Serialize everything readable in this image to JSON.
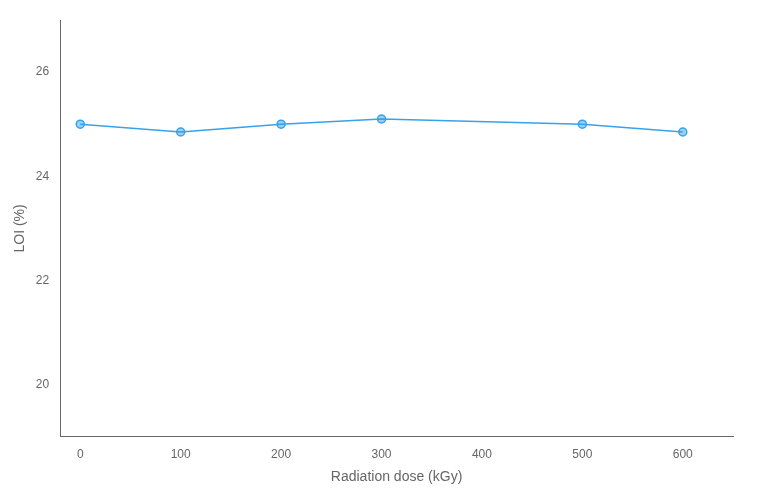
{
  "chart_data": {
    "type": "line",
    "x": [
      0,
      100,
      200,
      300,
      500,
      600
    ],
    "values": [
      25.0,
      24.85,
      25.0,
      25.1,
      25.0,
      24.85
    ],
    "xlabel": "Radiation dose (kGy)",
    "ylabel": "LOI (%)",
    "xlim": [
      -20,
      650
    ],
    "ylim": [
      19.0,
      27.0
    ],
    "xticks": [
      0,
      100,
      200,
      300,
      400,
      500,
      600
    ],
    "yticks": [
      20,
      22,
      24,
      26
    ],
    "marker": "circle",
    "grid": false
  }
}
